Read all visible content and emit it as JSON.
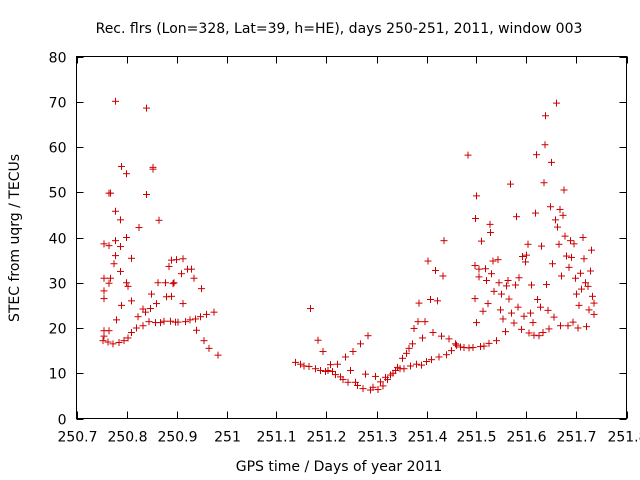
{
  "chart_data": {
    "type": "scatter",
    "title": "Rec. flrs (Lon=328, Lat=39, h=HE), days 250-251, 2011, window 003",
    "xlabel": "GPS time / Days of year 2011",
    "ylabel": "STEC from uqrg / TECUs",
    "xlim": [
      250.7,
      251.8
    ],
    "ylim": [
      0,
      80
    ],
    "xticks": [
      250.7,
      250.8,
      250.9,
      251,
      251.1,
      251.2,
      251.3,
      251.4,
      251.5,
      251.6,
      251.7,
      251.8
    ],
    "xtick_labels": [
      "250.7",
      "250.8",
      "250.9",
      "251",
      "251.1",
      "251.2",
      "251.3",
      "251.4",
      "251.5",
      "251.6",
      "251.7",
      "251.8"
    ],
    "yticks": [
      0,
      10,
      20,
      30,
      40,
      50,
      60,
      70,
      80
    ],
    "ytick_labels": [
      "0",
      "10",
      "20",
      "30",
      "40",
      "50",
      "60",
      "70",
      "80"
    ],
    "grid": false,
    "marker": "plus",
    "marker_color": "#cc0000",
    "series": [
      {
        "points": [
          [
            250.753,
            17.2
          ],
          [
            250.755,
            18.2
          ],
          [
            250.755,
            19.4
          ],
          [
            250.755,
            26.5
          ],
          [
            250.755,
            28.2
          ],
          [
            250.755,
            31.0
          ],
          [
            250.755,
            38.6
          ],
          [
            250.763,
            16.9
          ],
          [
            250.765,
            19.4
          ],
          [
            250.765,
            29.9
          ],
          [
            250.768,
            31.0
          ],
          [
            250.765,
            38.2
          ],
          [
            250.765,
            49.8
          ],
          [
            250.768,
            49.8
          ],
          [
            250.773,
            16.5
          ],
          [
            250.775,
            34.2
          ],
          [
            250.778,
            36.0
          ],
          [
            250.778,
            39.3
          ],
          [
            250.778,
            45.8
          ],
          [
            250.778,
            70.1
          ],
          [
            250.78,
            21.8
          ],
          [
            250.785,
            16.8
          ],
          [
            250.788,
            32.5
          ],
          [
            250.788,
            38.0
          ],
          [
            250.788,
            43.9
          ],
          [
            250.79,
            55.7
          ],
          [
            250.79,
            25.0
          ],
          [
            250.795,
            17.2
          ],
          [
            250.8,
            40.0
          ],
          [
            250.8,
            30.0
          ],
          [
            250.8,
            54.1
          ],
          [
            250.803,
            17.8
          ],
          [
            250.803,
            29.2
          ],
          [
            250.81,
            26.0
          ],
          [
            250.81,
            19.0
          ],
          [
            250.81,
            35.4
          ],
          [
            250.82,
            20.0
          ],
          [
            250.823,
            22.5
          ],
          [
            250.825,
            42.2
          ],
          [
            250.833,
            20.5
          ],
          [
            250.833,
            24.2
          ],
          [
            250.838,
            23.5
          ],
          [
            250.84,
            49.5
          ],
          [
            250.84,
            68.6
          ],
          [
            250.845,
            21.4
          ],
          [
            250.848,
            24.3
          ],
          [
            250.85,
            27.5
          ],
          [
            250.853,
            55.5
          ],
          [
            250.853,
            55.1
          ],
          [
            250.858,
            21.2
          ],
          [
            250.86,
            25.4
          ],
          [
            250.863,
            30.0
          ],
          [
            250.865,
            43.8
          ],
          [
            250.868,
            21.2
          ],
          [
            250.875,
            21.5
          ],
          [
            250.878,
            30.0
          ],
          [
            250.88,
            26.9
          ],
          [
            250.885,
            33.6
          ],
          [
            250.888,
            21.5
          ],
          [
            250.89,
            27.0
          ],
          [
            250.89,
            35.0
          ],
          [
            250.893,
            29.8
          ],
          [
            250.895,
            30.0
          ],
          [
            250.898,
            21.3
          ],
          [
            250.9,
            35.1
          ],
          [
            250.903,
            21.3
          ],
          [
            250.91,
            32.0
          ],
          [
            250.913,
            35.3
          ],
          [
            250.913,
            25.4
          ],
          [
            250.918,
            21.4
          ],
          [
            250.922,
            33.0
          ],
          [
            250.927,
            21.8
          ],
          [
            250.93,
            33.0
          ],
          [
            250.935,
            31.0
          ],
          [
            250.938,
            22.0
          ],
          [
            250.94,
            19.5
          ],
          [
            250.948,
            22.5
          ],
          [
            250.95,
            28.7
          ],
          [
            250.955,
            17.2
          ],
          [
            250.96,
            23.0
          ],
          [
            250.965,
            15.5
          ],
          [
            250.975,
            23.5
          ],
          [
            250.983,
            14.0
          ]
        ]
      },
      {
        "points": [
          [
            251.138,
            12.4
          ],
          [
            251.148,
            12.0
          ],
          [
            251.155,
            11.6
          ],
          [
            251.165,
            11.5
          ],
          [
            251.168,
            24.3
          ],
          [
            251.178,
            11.0
          ],
          [
            251.183,
            17.3
          ],
          [
            251.188,
            10.6
          ],
          [
            251.193,
            14.8
          ],
          [
            251.198,
            10.4
          ],
          [
            251.203,
            10.6
          ],
          [
            251.208,
            11.9
          ],
          [
            251.212,
            10.4
          ],
          [
            251.218,
            9.7
          ],
          [
            251.222,
            12.0
          ],
          [
            251.228,
            9.2
          ],
          [
            251.233,
            8.6
          ],
          [
            251.238,
            13.6
          ],
          [
            251.243,
            8.0
          ],
          [
            251.248,
            10.6
          ],
          [
            251.253,
            14.8
          ],
          [
            251.258,
            8.0
          ],
          [
            251.262,
            7.3
          ],
          [
            251.268,
            16.5
          ],
          [
            251.273,
            6.6
          ],
          [
            251.278,
            9.8
          ],
          [
            251.283,
            18.3
          ],
          [
            251.288,
            6.3
          ],
          [
            251.293,
            6.9
          ],
          [
            251.298,
            9.3
          ],
          [
            251.303,
            6.4
          ],
          [
            251.308,
            8.1
          ],
          [
            251.313,
            7.2
          ],
          [
            251.318,
            9.1
          ],
          [
            251.322,
            8.6
          ],
          [
            251.328,
            9.6
          ],
          [
            251.333,
            10.0
          ],
          [
            251.338,
            10.6
          ],
          [
            251.342,
            11.3
          ],
          [
            251.347,
            11.0
          ],
          [
            251.352,
            13.3
          ],
          [
            251.355,
            11.0
          ],
          [
            251.36,
            14.4
          ],
          [
            251.365,
            15.5
          ],
          [
            251.368,
            11.6
          ],
          [
            251.372,
            16.5
          ],
          [
            251.375,
            19.9
          ],
          [
            251.38,
            12.0
          ],
          [
            251.383,
            21.4
          ],
          [
            251.385,
            25.5
          ],
          [
            251.39,
            11.8
          ],
          [
            251.392,
            17.8
          ],
          [
            251.397,
            21.4
          ],
          [
            251.4,
            12.6
          ],
          [
            251.403,
            34.8
          ],
          [
            251.408,
            26.3
          ],
          [
            251.41,
            13.0
          ],
          [
            251.413,
            19.0
          ],
          [
            251.418,
            32.7
          ],
          [
            251.422,
            26.0
          ],
          [
            251.425,
            13.6
          ],
          [
            251.43,
            18.2
          ],
          [
            251.433,
            31.5
          ],
          [
            251.435,
            39.3
          ],
          [
            251.44,
            14.1
          ],
          [
            251.445,
            17.6
          ],
          [
            251.45,
            15.0
          ],
          [
            251.458,
            16.5
          ],
          [
            251.46,
            16.2
          ],
          [
            251.468,
            15.8
          ],
          [
            251.475,
            15.7
          ],
          [
            251.483,
            58.2
          ],
          [
            251.485,
            15.6
          ],
          [
            251.493,
            15.7
          ],
          [
            251.497,
            33.8
          ],
          [
            251.497,
            26.5
          ],
          [
            251.498,
            44.2
          ],
          [
            251.5,
            49.2
          ]
        ]
      },
      {
        "points": [
          [
            251.5,
            21.2
          ],
          [
            251.505,
            33.0
          ],
          [
            251.505,
            31.3
          ],
          [
            251.508,
            15.9
          ],
          [
            251.51,
            39.2
          ],
          [
            251.513,
            23.7
          ],
          [
            251.515,
            16.0
          ],
          [
            251.518,
            33.1
          ],
          [
            251.52,
            30.5
          ],
          [
            251.523,
            25.4
          ],
          [
            251.525,
            16.6
          ],
          [
            251.527,
            42.9
          ],
          [
            251.528,
            41.1
          ],
          [
            251.53,
            32.0
          ],
          [
            251.533,
            34.8
          ],
          [
            251.535,
            28.1
          ],
          [
            251.54,
            17.2
          ],
          [
            251.543,
            35.1
          ],
          [
            251.545,
            30.0
          ],
          [
            251.548,
            24.0
          ],
          [
            251.55,
            27.5
          ],
          [
            251.553,
            22.0
          ],
          [
            251.558,
            19.2
          ],
          [
            251.56,
            29.3
          ],
          [
            251.563,
            30.5
          ],
          [
            251.565,
            26.4
          ],
          [
            251.568,
            51.8
          ],
          [
            251.57,
            23.3
          ],
          [
            251.575,
            21.1
          ],
          [
            251.578,
            29.5
          ],
          [
            251.58,
            44.6
          ],
          [
            251.583,
            24.6
          ],
          [
            251.585,
            31.1
          ],
          [
            251.59,
            19.7
          ],
          [
            251.592,
            35.8
          ],
          [
            251.595,
            22.6
          ],
          [
            251.598,
            34.6
          ],
          [
            251.6,
            36.1
          ],
          [
            251.603,
            38.5
          ],
          [
            251.605,
            18.9
          ],
          [
            251.608,
            23.3
          ],
          [
            251.61,
            29.5
          ],
          [
            251.613,
            21.2
          ],
          [
            251.615,
            18.4
          ],
          [
            251.618,
            45.4
          ],
          [
            251.62,
            58.3
          ],
          [
            251.622,
            26.3
          ],
          [
            251.625,
            18.3
          ],
          [
            251.628,
            24.6
          ],
          [
            251.63,
            38.1
          ],
          [
            251.633,
            19.0
          ],
          [
            251.635,
            52.1
          ],
          [
            251.637,
            60.5
          ],
          [
            251.638,
            66.9
          ],
          [
            251.64,
            29.6
          ],
          [
            251.643,
            23.9
          ],
          [
            251.645,
            19.8
          ],
          [
            251.648,
            46.8
          ],
          [
            251.65,
            56.6
          ],
          [
            251.652,
            34.2
          ],
          [
            251.655,
            22.4
          ],
          [
            251.658,
            43.9
          ],
          [
            251.66,
            69.7
          ],
          [
            251.662,
            42.3
          ],
          [
            251.665,
            38.5
          ],
          [
            251.667,
            46.2
          ],
          [
            251.668,
            20.5
          ],
          [
            251.67,
            31.5
          ],
          [
            251.673,
            44.9
          ],
          [
            251.675,
            50.5
          ],
          [
            251.677,
            40.3
          ],
          [
            251.68,
            35.9
          ],
          [
            251.683,
            20.5
          ],
          [
            251.685,
            33.4
          ],
          [
            251.688,
            39.3
          ],
          [
            251.69,
            35.6
          ],
          [
            251.693,
            21.3
          ],
          [
            251.695,
            38.6
          ],
          [
            251.698,
            31.0
          ],
          [
            251.7,
            27.5
          ],
          [
            251.703,
            20.0
          ],
          [
            251.705,
            25.0
          ],
          [
            251.708,
            32.1
          ],
          [
            251.71,
            28.6
          ],
          [
            251.713,
            40.0
          ],
          [
            251.715,
            35.3
          ],
          [
            251.718,
            30.0
          ],
          [
            251.72,
            20.3
          ],
          [
            251.723,
            29.2
          ],
          [
            251.725,
            24.0
          ],
          [
            251.728,
            32.6
          ],
          [
            251.73,
            37.2
          ],
          [
            251.732,
            27.0
          ],
          [
            251.735,
            25.5
          ],
          [
            251.735,
            23.0
          ]
        ]
      }
    ]
  }
}
